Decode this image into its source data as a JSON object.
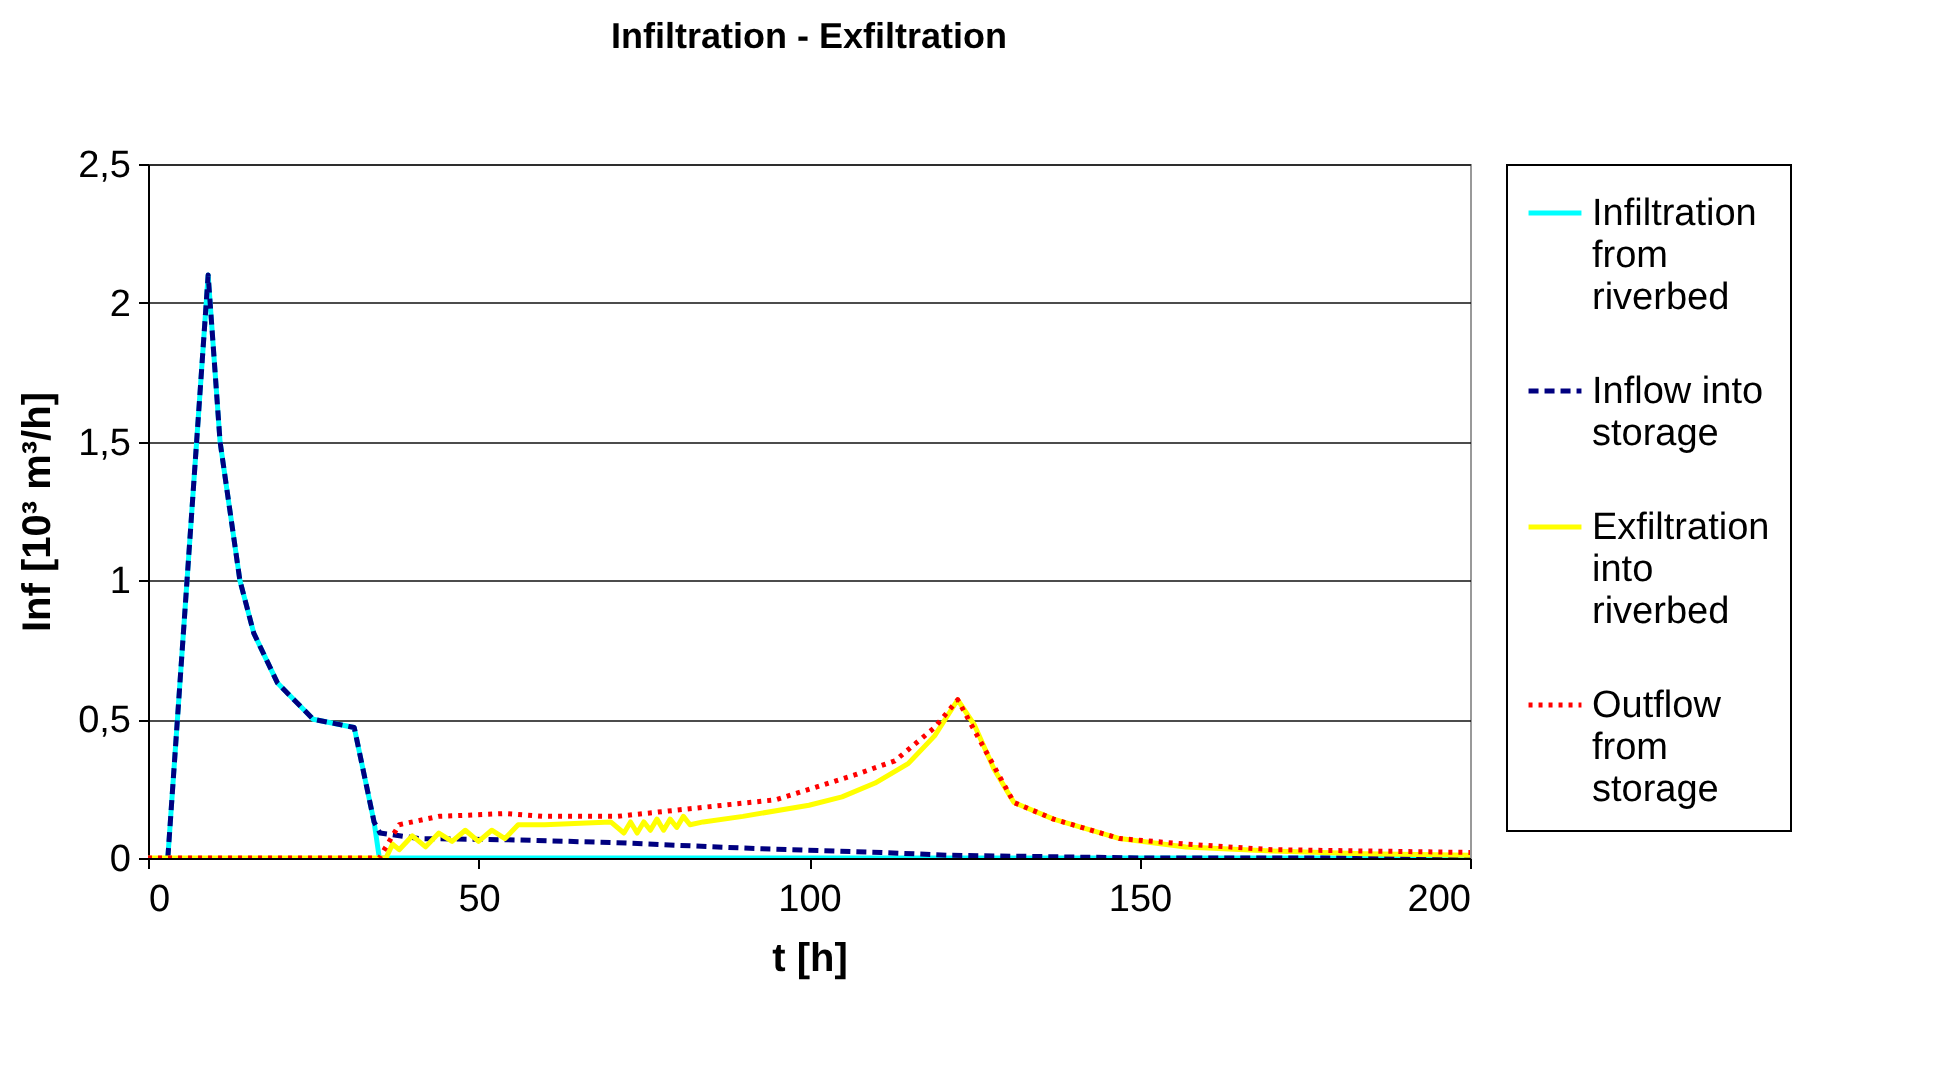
{
  "chart_data": {
    "type": "line",
    "title": "Infiltration - Exfiltration",
    "xlabel": "t [h]",
    "ylabel": "Inf [10³ m³/h]",
    "xlim": [
      0,
      200
    ],
    "xticks": [
      0,
      50,
      100,
      150,
      200
    ],
    "ylim": [
      0,
      2.5
    ],
    "yticks": [
      0,
      {
        "value": 0.5,
        "label": "0,5"
      },
      1,
      {
        "value": 1.5,
        "label": "1,5"
      },
      2,
      {
        "value": 2.5,
        "label": "2,5"
      }
    ],
    "grid": "y",
    "legend": "right",
    "series": [
      {
        "name": "Infiltration from riverbed",
        "color": "#00ffff",
        "line_style": "solid",
        "x": [
          3,
          9.1,
          10.9,
          13.9,
          16,
          19.6,
          25,
          31.2,
          34.2,
          35,
          50,
          100,
          150,
          200
        ],
        "values": [
          0,
          2.1,
          1.5,
          1.0,
          0.81,
          0.63,
          0.5,
          0.47,
          0.13,
          0,
          0,
          0,
          0,
          0
        ]
      },
      {
        "name": "Inflow into storage",
        "color": "#000080",
        "line_style": "dashed",
        "x": [
          3,
          9.1,
          10.9,
          13.9,
          16,
          19.6,
          25,
          31.2,
          34.2,
          35.1,
          41,
          56,
          71,
          91,
          111,
          121,
          150,
          200
        ],
        "values": [
          0,
          2.1,
          1.5,
          1.0,
          0.81,
          0.63,
          0.5,
          0.47,
          0.13,
          0.09,
          0.07,
          0.065,
          0.055,
          0.035,
          0.02,
          0.01,
          0,
          0
        ]
      },
      {
        "name": "Exfiltration into riverbed",
        "color": "#ffff00",
        "line_style": "solid",
        "x": [
          0,
          36,
          37,
          38,
          40,
          42,
          44,
          46,
          48,
          50,
          52,
          54,
          56,
          60,
          70,
          72,
          73,
          74,
          75,
          76,
          77,
          78,
          79,
          80,
          81,
          82,
          84,
          90,
          100,
          105,
          110,
          115,
          119,
          122.5,
          125,
          128,
          131,
          137,
          147,
          157,
          170,
          184,
          200
        ],
        "values": [
          0,
          0,
          0.05,
          0.03,
          0.08,
          0.04,
          0.09,
          0.06,
          0.1,
          0.06,
          0.1,
          0.07,
          0.12,
          0.12,
          0.13,
          0.09,
          0.13,
          0.09,
          0.13,
          0.1,
          0.14,
          0.1,
          0.14,
          0.11,
          0.15,
          0.12,
          0.13,
          0.15,
          0.19,
          0.22,
          0.27,
          0.34,
          0.44,
          0.57,
          0.48,
          0.32,
          0.2,
          0.14,
          0.07,
          0.04,
          0.025,
          0.015,
          0.01
        ]
      },
      {
        "name": "Outflow from storage",
        "color": "#ff0000",
        "line_style": "dotted",
        "x": [
          0,
          35,
          38,
          44,
          54,
          60,
          71,
          83,
          95,
          107,
          113,
          119,
          122.5,
          128,
          131,
          137,
          147,
          157,
          170,
          200
        ],
        "values": [
          0,
          0,
          0.12,
          0.15,
          0.16,
          0.15,
          0.15,
          0.18,
          0.21,
          0.3,
          0.35,
          0.47,
          0.57,
          0.33,
          0.2,
          0.14,
          0.07,
          0.05,
          0.03,
          0.02
        ]
      }
    ]
  }
}
